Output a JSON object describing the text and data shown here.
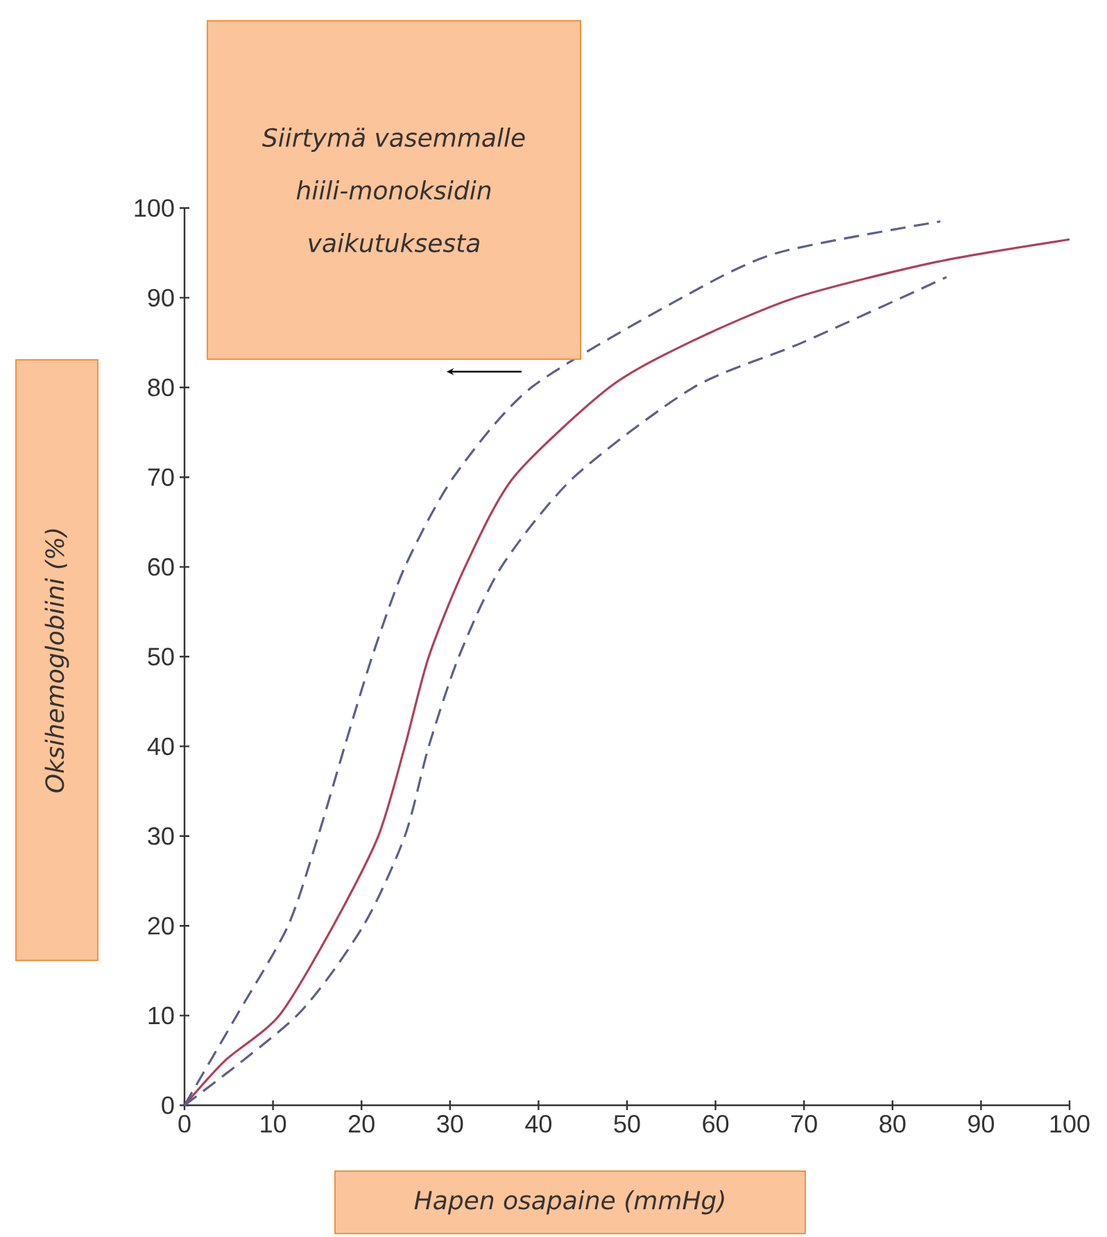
{
  "chart_data": {
    "type": "line",
    "xlabel": "Hapen osapaine (mmHg)",
    "ylabel": "Oksihemoglobiini (%)",
    "annotations": [
      "Siirtymä vasemmalle hiili-monoksidin vaikutuksesta"
    ],
    "series": [
      {
        "color": "#b0405a",
        "line_style": "solid",
        "x": [
          0,
          4.6,
          10.7,
          16.8,
          21.9,
          24.9,
          27.6,
          31.7,
          37.2,
          48,
          57,
          69,
          85,
          100
        ],
        "values": [
          0,
          5,
          10,
          20,
          30,
          40,
          50,
          60,
          70,
          80,
          85,
          90,
          94,
          96.5
        ]
      },
      {
        "color": "#5c5f8c",
        "line_style": "dashed",
        "x": [
          0,
          5.9,
          11.7,
          15.1,
          18.1,
          21.2,
          24.9,
          30.4,
          39.2,
          56.2,
          67,
          85.4
        ],
        "values": [
          0,
          10,
          20,
          30,
          40,
          50,
          60,
          70,
          80,
          90,
          95,
          98.5
        ]
      },
      {
        "color": "#5c5f8c",
        "line_style": "dashed",
        "x": [
          0,
          12.7,
          20.2,
          24.9,
          27.6,
          31,
          35.8,
          44,
          57.5,
          69.8,
          86.1
        ],
        "values": [
          0,
          10,
          20,
          30,
          40,
          50,
          60,
          70,
          80,
          85,
          92.3
        ]
      }
    ],
    "xlim": [
      0,
      100
    ],
    "ylim": [
      0,
      100
    ],
    "xticks": [
      0,
      10,
      20,
      30,
      40,
      50,
      60,
      70,
      80,
      90,
      100
    ],
    "yticks": [
      0,
      10,
      20,
      30,
      40,
      50,
      60,
      70,
      80,
      90,
      100
    ]
  }
}
